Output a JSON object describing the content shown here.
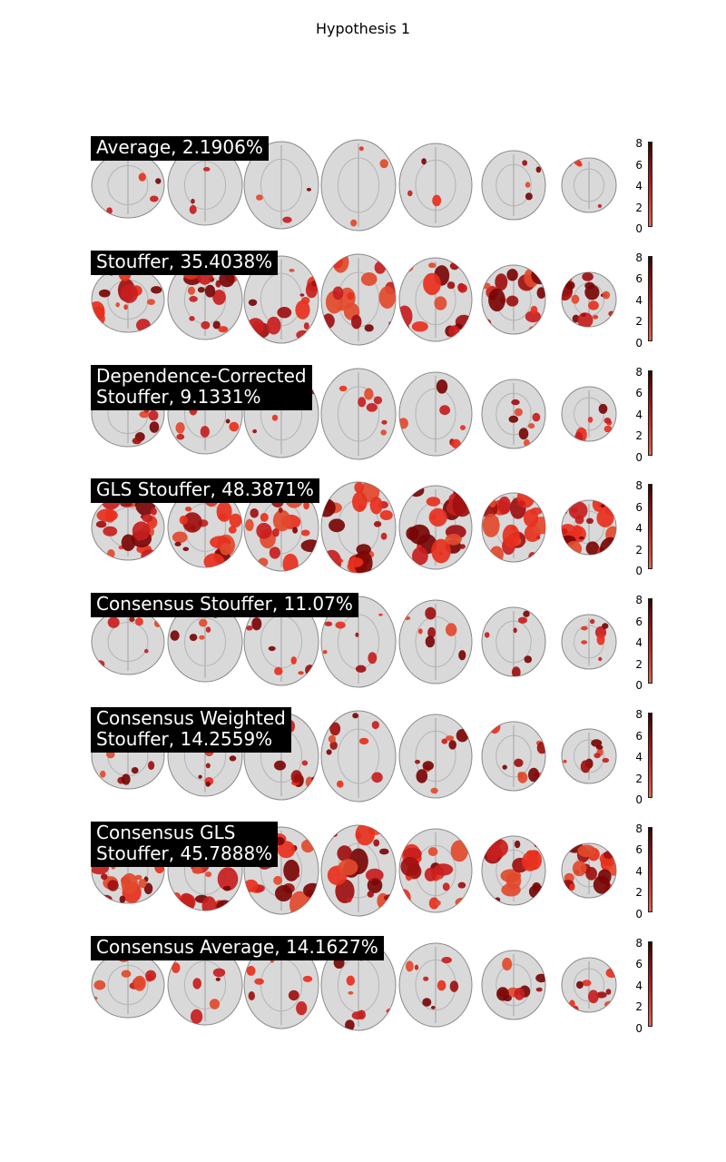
{
  "figure_title": "Hypothesis 1",
  "colorbar_ticks": [
    "8",
    "6",
    "4",
    "2",
    "0"
  ],
  "colormap": {
    "low": "#e8604a",
    "mid": "#c81e1e",
    "high": "#3a0000"
  },
  "brain_colors": {
    "tissue": "#d9d9d9",
    "outline": "#8a8a8a",
    "detail": "#b5b5b5"
  },
  "panels": [
    {
      "label": "Average, 2.1906%",
      "coverage": 0.02
    },
    {
      "label": "Stouffer, 35.4038%",
      "coverage": 0.35
    },
    {
      "label": "Dependence-Corrected\nStouffer, 9.1331%",
      "coverage": 0.09
    },
    {
      "label": "GLS Stouffer, 48.3871%",
      "coverage": 0.48
    },
    {
      "label": "Consensus Stouffer, 11.07%",
      "coverage": 0.11
    },
    {
      "label": "Consensus Weighted\nStouffer, 14.2559%",
      "coverage": 0.14
    },
    {
      "label": "Consensus GLS\nStouffer, 45.7888%",
      "coverage": 0.46
    },
    {
      "label": "Consensus Average, 14.1627%",
      "coverage": 0.14
    }
  ]
}
